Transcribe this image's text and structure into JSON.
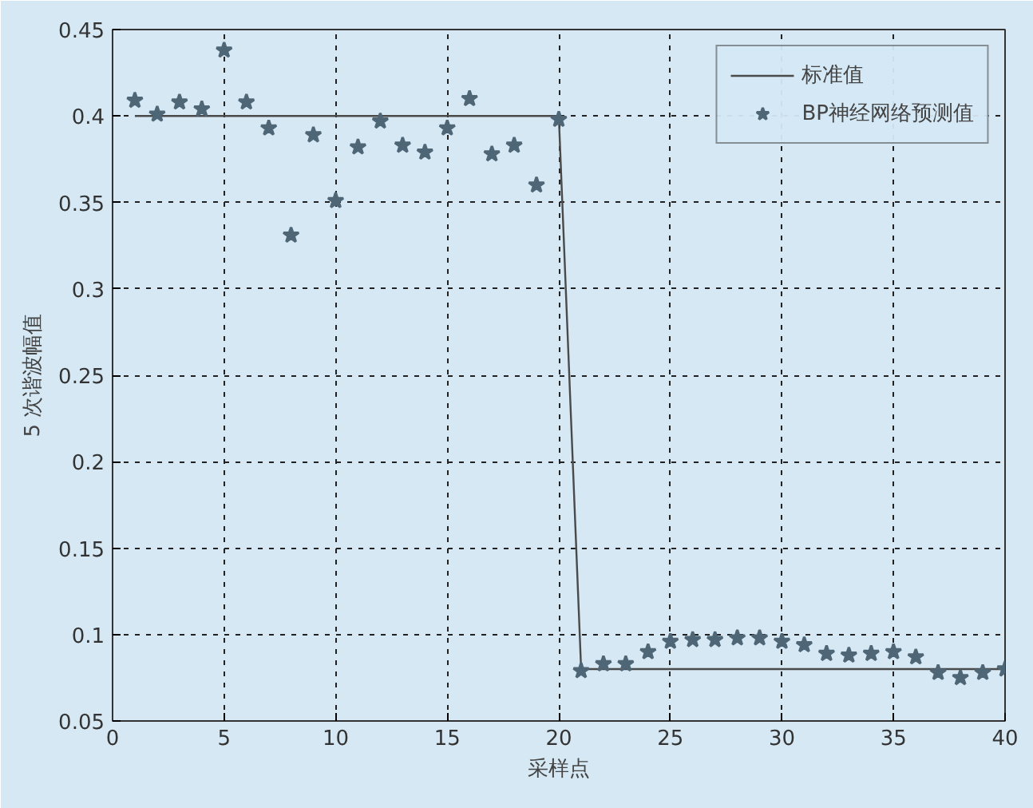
{
  "chart_data": {
    "type": "line",
    "xlabel": "采样点",
    "ylabel": "5 次谐波幅值",
    "x": [
      1,
      2,
      3,
      4,
      5,
      6,
      7,
      8,
      9,
      10,
      11,
      12,
      13,
      14,
      15,
      16,
      17,
      18,
      19,
      20,
      21,
      22,
      23,
      24,
      25,
      26,
      27,
      28,
      29,
      30,
      31,
      32,
      33,
      34,
      35,
      36,
      37,
      38,
      39,
      40
    ],
    "series": [
      {
        "name": "标准值",
        "color": "#4a4a4a",
        "marker": "none",
        "line_style": "solid",
        "values": [
          0.4,
          0.4,
          0.4,
          0.4,
          0.4,
          0.4,
          0.4,
          0.4,
          0.4,
          0.4,
          0.4,
          0.4,
          0.4,
          0.4,
          0.4,
          0.4,
          0.4,
          0.4,
          0.4,
          0.4,
          0.08,
          0.08,
          0.08,
          0.08,
          0.08,
          0.08,
          0.08,
          0.08,
          0.08,
          0.08,
          0.08,
          0.08,
          0.08,
          0.08,
          0.08,
          0.08,
          0.08,
          0.08,
          0.08,
          0.08
        ]
      },
      {
        "name": "BP神经网络预测值",
        "type": "scatter",
        "color": "#4e6676",
        "marker": "star",
        "values": [
          0.409,
          0.401,
          0.408,
          0.404,
          0.438,
          0.408,
          0.393,
          0.331,
          0.389,
          0.351,
          0.382,
          0.397,
          0.383,
          0.379,
          0.393,
          0.41,
          0.378,
          0.383,
          0.36,
          0.398,
          0.079,
          0.083,
          0.083,
          0.09,
          0.096,
          0.097,
          0.097,
          0.098,
          0.098,
          0.096,
          0.094,
          0.089,
          0.088,
          0.089,
          0.09,
          0.087,
          0.078,
          0.075,
          0.078,
          0.08
        ]
      }
    ],
    "xlim": [
      0,
      40
    ],
    "xticks": [
      0,
      5,
      10,
      15,
      20,
      25,
      30,
      35,
      40
    ],
    "ylim": [
      0.05,
      0.45
    ],
    "yticks": [
      0.05,
      0.1,
      0.15,
      0.2,
      0.25,
      0.3,
      0.35,
      0.4,
      0.45
    ],
    "grid": true,
    "legend": "top right"
  }
}
